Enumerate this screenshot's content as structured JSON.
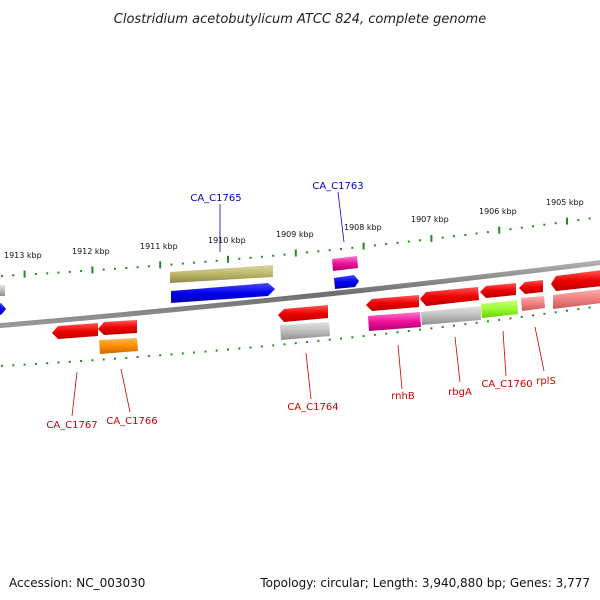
{
  "title": "Clostridium acetobutylicum ATCC 824, complete genome",
  "footer": {
    "accession": "Accession: NC_003030",
    "topology": "Topology: circular; Length: 3,940,880 bp; Genes: 3,777"
  },
  "colors": {
    "backbone": "#777777",
    "tick": "#228B22",
    "label_blue": "#0000CC",
    "label_red": "#CC0000"
  },
  "ruler_top": [
    "1913 kbp",
    "1912 kbp",
    "1911 kbp",
    "1910 kbp",
    "1909 kbp",
    "1908 kbp",
    "1907 kbp",
    "1906 kbp",
    "1905 kbp"
  ],
  "gene_labels": [
    {
      "text": "CA_C1765",
      "color": "label_blue"
    },
    {
      "text": "CA_C1763",
      "color": "label_blue"
    },
    {
      "text": "CA_C1767",
      "color": "label_red"
    },
    {
      "text": "CA_C1766",
      "color": "label_red"
    },
    {
      "text": "CA_C1764",
      "color": "label_red"
    },
    {
      "text": "rnhB",
      "color": "label_red"
    },
    {
      "text": "rbgA",
      "color": "label_red"
    },
    {
      "text": "CA_C1760",
      "color": "label_red"
    },
    {
      "text": "rplS",
      "color": "label_red"
    }
  ]
}
